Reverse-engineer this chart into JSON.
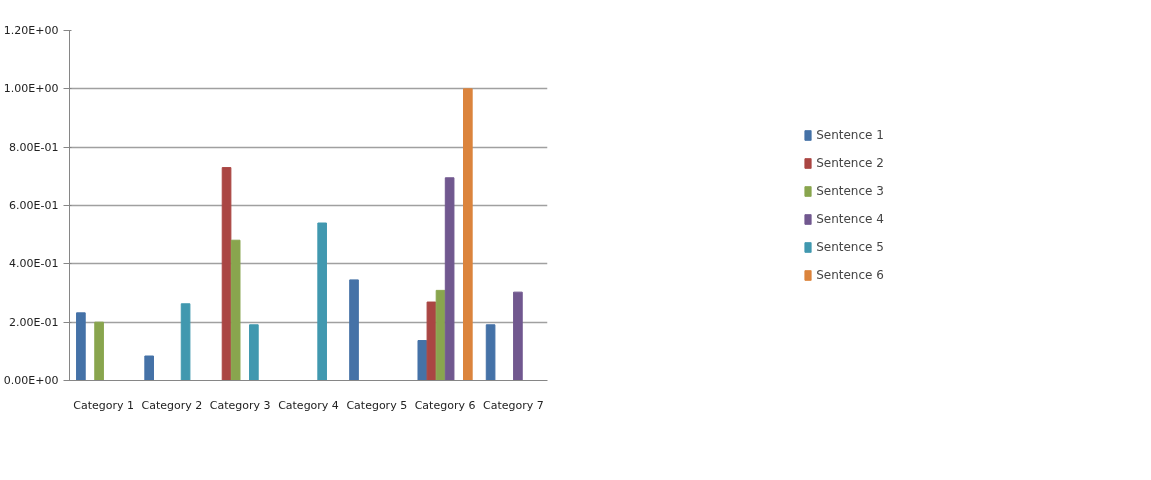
{
  "chart_data": {
    "type": "bar",
    "categories": [
      "Category 1",
      "Category 2",
      "Category 3",
      "Category 4",
      "Category 5",
      "Category 6",
      "Category 7"
    ],
    "series": [
      {
        "name": "Sentence 1",
        "color": "#4572a7",
        "values": [
          0.232,
          0.084,
          null,
          null,
          0.345,
          0.137,
          0.191
        ]
      },
      {
        "name": "Sentence 2",
        "color": "#aa4643",
        "values": [
          null,
          null,
          0.73,
          null,
          null,
          0.269,
          null
        ]
      },
      {
        "name": "Sentence 3",
        "color": "#89a54e",
        "values": [
          0.2,
          null,
          0.481,
          null,
          null,
          0.309,
          null
        ]
      },
      {
        "name": "Sentence 4",
        "color": "#71588f",
        "values": [
          null,
          null,
          null,
          null,
          null,
          0.695,
          0.303
        ]
      },
      {
        "name": "Sentence 5",
        "color": "#4198af",
        "values": [
          null,
          0.263,
          0.191,
          0.54,
          null,
          null,
          null
        ]
      },
      {
        "name": "Sentence 6",
        "color": "#db843d",
        "values": [
          null,
          null,
          null,
          null,
          null,
          1.0,
          null
        ]
      }
    ],
    "ylim": [
      0,
      1.2
    ],
    "yticks": [
      {
        "value": 0,
        "label": "0.00E+00"
      },
      {
        "value": 0.2,
        "label": "2.00E-01"
      },
      {
        "value": 0.4,
        "label": "4.00E-01"
      },
      {
        "value": 0.6,
        "label": "6.00E-01"
      },
      {
        "value": 0.8,
        "label": "8.00E-01"
      },
      {
        "value": 1.0,
        "label": "1.00E+00"
      },
      {
        "value": 1.2,
        "label": "1.20E+00"
      }
    ],
    "grid": "y",
    "legend": "right"
  }
}
